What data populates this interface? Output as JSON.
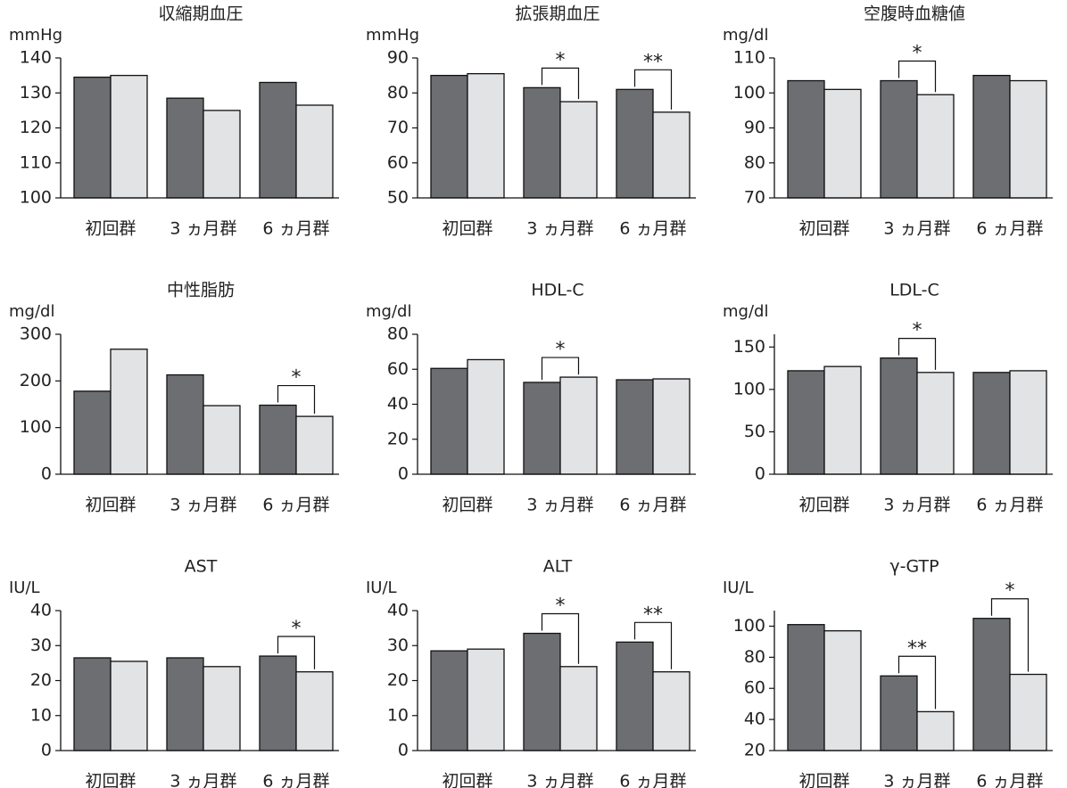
{
  "chart_data": [
    {
      "type": "bar",
      "title": "収縮期血圧",
      "y_label": "mmHg",
      "categories": [
        "初回群",
        "3 ヵ月群",
        "6 ヵ月群"
      ],
      "series": [
        {
          "color": "#6d6e72",
          "values": [
            134.5,
            128.5,
            133
          ]
        },
        {
          "color": "#e2e3e5",
          "values": [
            135,
            125,
            126.5
          ]
        }
      ],
      "ylim": [
        100,
        140
      ],
      "yticks": [
        100,
        110,
        120,
        130,
        140
      ],
      "annotations": []
    },
    {
      "type": "bar",
      "title": "拡張期血圧",
      "y_label": "mmHg",
      "categories": [
        "初回群",
        "3 ヵ月群",
        "6 ヵ月群"
      ],
      "series": [
        {
          "color": "#6d6e72",
          "values": [
            85,
            81.5,
            81
          ]
        },
        {
          "color": "#e2e3e5",
          "values": [
            85.5,
            77.5,
            74.5
          ]
        }
      ],
      "ylim": [
        50,
        90
      ],
      "yticks": [
        50,
        60,
        70,
        80,
        90
      ],
      "annotations": [
        {
          "category": "3 ヵ月群",
          "text": "*"
        },
        {
          "category": "6 ヵ月群",
          "text": "**"
        }
      ]
    },
    {
      "type": "bar",
      "title": "空腹時血糖値",
      "y_label": "mg/dl",
      "categories": [
        "初回群",
        "3 ヵ月群",
        "6 ヵ月群"
      ],
      "series": [
        {
          "color": "#6d6e72",
          "values": [
            103.5,
            103.5,
            105
          ]
        },
        {
          "color": "#e2e3e5",
          "values": [
            101,
            99.5,
            103.5
          ]
        }
      ],
      "ylim": [
        70,
        110
      ],
      "yticks": [
        70,
        80,
        90,
        100,
        110
      ],
      "annotations": [
        {
          "category": "3 ヵ月群",
          "text": "*"
        }
      ]
    },
    {
      "type": "bar",
      "title": "中性脂肪",
      "y_label": "mg/dl",
      "categories": [
        "初回群",
        "3 ヵ月群",
        "6 ヵ月群"
      ],
      "series": [
        {
          "color": "#6d6e72",
          "values": [
            178,
            213,
            148
          ]
        },
        {
          "color": "#e2e3e5",
          "values": [
            268,
            147,
            124
          ]
        }
      ],
      "ylim": [
        0,
        300
      ],
      "yticks": [
        0,
        100,
        200,
        300
      ],
      "annotations": [
        {
          "category": "6 ヵ月群",
          "text": "*"
        }
      ]
    },
    {
      "type": "bar",
      "title": "HDL-C",
      "y_label": "mg/dl",
      "categories": [
        "初回群",
        "3 ヵ月群",
        "6 ヵ月群"
      ],
      "series": [
        {
          "color": "#6d6e72",
          "values": [
            60.5,
            52.5,
            54
          ]
        },
        {
          "color": "#e2e3e5",
          "values": [
            65.5,
            55.5,
            54.5
          ]
        }
      ],
      "ylim": [
        0,
        80
      ],
      "yticks": [
        0,
        20,
        40,
        60,
        80
      ],
      "annotations": [
        {
          "category": "3 ヵ月群",
          "text": "*"
        }
      ]
    },
    {
      "type": "bar",
      "title": "LDL-C",
      "y_label": "mg/dl",
      "categories": [
        "初回群",
        "3 ヵ月群",
        "6 ヵ月群"
      ],
      "series": [
        {
          "color": "#6d6e72",
          "values": [
            122,
            137,
            120
          ]
        },
        {
          "color": "#e2e3e5",
          "values": [
            127,
            120,
            122
          ]
        }
      ],
      "ylim": [
        0,
        165
      ],
      "yticks": [
        0,
        50,
        100,
        150
      ],
      "annotations": [
        {
          "category": "3 ヵ月群",
          "text": "*"
        }
      ]
    },
    {
      "type": "bar",
      "title": "AST",
      "y_label": "IU/L",
      "categories": [
        "初回群",
        "3 ヵ月群",
        "6 ヵ月群"
      ],
      "series": [
        {
          "color": "#6d6e72",
          "values": [
            26.5,
            26.5,
            27
          ]
        },
        {
          "color": "#e2e3e5",
          "values": [
            25.5,
            24,
            22.5
          ]
        }
      ],
      "ylim": [
        0,
        40
      ],
      "yticks": [
        0,
        10,
        20,
        30,
        40
      ],
      "annotations": [
        {
          "category": "6 ヵ月群",
          "text": "*"
        }
      ]
    },
    {
      "type": "bar",
      "title": "ALT",
      "y_label": "IU/L",
      "categories": [
        "初回群",
        "3 ヵ月群",
        "6 ヵ月群"
      ],
      "series": [
        {
          "color": "#6d6e72",
          "values": [
            28.5,
            33.5,
            31
          ]
        },
        {
          "color": "#e2e3e5",
          "values": [
            29,
            24,
            22.5
          ]
        }
      ],
      "ylim": [
        0,
        40
      ],
      "yticks": [
        0,
        10,
        20,
        30,
        40
      ],
      "annotations": [
        {
          "category": "3 ヵ月群",
          "text": "*"
        },
        {
          "category": "6 ヵ月群",
          "text": "**"
        }
      ]
    },
    {
      "type": "bar",
      "title": "γ-GTP",
      "y_label": "IU/L",
      "categories": [
        "初回群",
        "3 ヵ月群",
        "6 ヵ月群"
      ],
      "series": [
        {
          "color": "#6d6e72",
          "values": [
            101,
            68,
            105
          ]
        },
        {
          "color": "#e2e3e5",
          "values": [
            97,
            45,
            69
          ]
        }
      ],
      "ylim": [
        20,
        110
      ],
      "yticks": [
        20,
        40,
        60,
        80,
        100
      ],
      "annotations": [
        {
          "category": "3 ヵ月群",
          "text": "**"
        },
        {
          "category": "6 ヵ月群",
          "text": "*"
        }
      ]
    }
  ]
}
